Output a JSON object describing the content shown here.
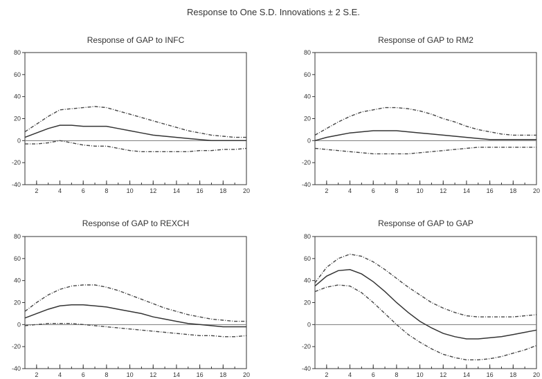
{
  "figure": {
    "title": "Response to One S.D. Innovations ± 2 S.E."
  },
  "chart_data": [
    {
      "type": "line",
      "title": "Response of GAP to INFC",
      "x": [
        1,
        2,
        3,
        4,
        5,
        6,
        7,
        8,
        9,
        10,
        11,
        12,
        13,
        14,
        15,
        16,
        17,
        18,
        19,
        20
      ],
      "xticks": [
        2,
        4,
        6,
        8,
        10,
        12,
        14,
        16,
        18,
        20
      ],
      "yticks": [
        -40,
        -20,
        0,
        20,
        40,
        60,
        80
      ],
      "ylim": [
        -40,
        80
      ],
      "xlim": [
        1,
        20
      ],
      "series": [
        {
          "role": "upper",
          "values": [
            8,
            15,
            22,
            28,
            29,
            30,
            31,
            30,
            27,
            24,
            21,
            18,
            15,
            12,
            9,
            7,
            5,
            4,
            3,
            3
          ]
        },
        {
          "role": "estimate",
          "values": [
            3,
            7,
            11,
            14,
            14,
            13,
            13,
            13,
            11,
            9,
            7,
            5,
            4,
            3,
            2,
            1,
            0,
            0,
            0,
            0
          ]
        },
        {
          "role": "lower",
          "values": [
            -3,
            -3,
            -2,
            0,
            -2,
            -4,
            -5,
            -5,
            -7,
            -9,
            -10,
            -10,
            -10,
            -10,
            -10,
            -9,
            -9,
            -8,
            -8,
            -7
          ]
        }
      ]
    },
    {
      "type": "line",
      "title": "Response of GAP to RM2",
      "x": [
        1,
        2,
        3,
        4,
        5,
        6,
        7,
        8,
        9,
        10,
        11,
        12,
        13,
        14,
        15,
        16,
        17,
        18,
        19,
        20
      ],
      "xticks": [
        2,
        4,
        6,
        8,
        10,
        12,
        14,
        16,
        18,
        20
      ],
      "yticks": [
        -40,
        -20,
        0,
        20,
        40,
        60,
        80
      ],
      "ylim": [
        -40,
        80
      ],
      "xlim": [
        1,
        20
      ],
      "series": [
        {
          "role": "upper",
          "values": [
            5,
            11,
            17,
            22,
            26,
            28,
            30,
            30,
            29,
            27,
            24,
            20,
            17,
            13,
            10,
            8,
            6,
            5,
            5,
            5
          ]
        },
        {
          "role": "estimate",
          "values": [
            0,
            3,
            5,
            7,
            8,
            9,
            9,
            9,
            8,
            7,
            6,
            5,
            4,
            3,
            2,
            1,
            1,
            1,
            1,
            1
          ]
        },
        {
          "role": "lower",
          "values": [
            -7,
            -8,
            -9,
            -10,
            -11,
            -12,
            -12,
            -12,
            -12,
            -11,
            -10,
            -9,
            -8,
            -7,
            -6,
            -6,
            -6,
            -6,
            -6,
            -6
          ]
        }
      ]
    },
    {
      "type": "line",
      "title": "Response of GAP to REXCH",
      "x": [
        1,
        2,
        3,
        4,
        5,
        6,
        7,
        8,
        9,
        10,
        11,
        12,
        13,
        14,
        15,
        16,
        17,
        18,
        19,
        20
      ],
      "xticks": [
        2,
        4,
        6,
        8,
        10,
        12,
        14,
        16,
        18,
        20
      ],
      "yticks": [
        -40,
        -20,
        0,
        20,
        40,
        60,
        80
      ],
      "ylim": [
        -40,
        80
      ],
      "xlim": [
        1,
        20
      ],
      "series": [
        {
          "role": "upper",
          "values": [
            12,
            20,
            27,
            32,
            35,
            36,
            36,
            34,
            31,
            27,
            23,
            19,
            15,
            12,
            9,
            7,
            5,
            4,
            3,
            3
          ]
        },
        {
          "role": "estimate",
          "values": [
            6,
            10,
            14,
            17,
            18,
            18,
            17,
            16,
            14,
            12,
            10,
            7,
            5,
            3,
            1,
            0,
            -1,
            -2,
            -2,
            -2
          ]
        },
        {
          "role": "lower",
          "values": [
            -1,
            0,
            1,
            1,
            1,
            0,
            -1,
            -2,
            -3,
            -4,
            -5,
            -6,
            -7,
            -8,
            -9,
            -10,
            -10,
            -11,
            -11,
            -10
          ]
        }
      ]
    },
    {
      "type": "line",
      "title": "Response of GAP to GAP",
      "x": [
        1,
        2,
        3,
        4,
        5,
        6,
        7,
        8,
        9,
        10,
        11,
        12,
        13,
        14,
        15,
        16,
        17,
        18,
        19,
        20
      ],
      "xticks": [
        2,
        4,
        6,
        8,
        10,
        12,
        14,
        16,
        18,
        20
      ],
      "yticks": [
        -40,
        -20,
        0,
        20,
        40,
        60,
        80
      ],
      "ylim": [
        -40,
        80
      ],
      "xlim": [
        1,
        20
      ],
      "series": [
        {
          "role": "upper",
          "values": [
            38,
            52,
            60,
            64,
            62,
            57,
            50,
            42,
            34,
            27,
            20,
            15,
            11,
            8,
            7,
            7,
            7,
            7,
            8,
            9
          ]
        },
        {
          "role": "estimate",
          "values": [
            35,
            44,
            49,
            50,
            46,
            39,
            30,
            20,
            11,
            3,
            -3,
            -8,
            -11,
            -13,
            -13,
            -12,
            -11,
            -9,
            -7,
            -5
          ]
        },
        {
          "role": "lower",
          "values": [
            30,
            34,
            36,
            35,
            29,
            20,
            10,
            0,
            -9,
            -16,
            -22,
            -27,
            -30,
            -32,
            -32,
            -31,
            -29,
            -26,
            -23,
            -19
          ]
        }
      ]
    }
  ]
}
